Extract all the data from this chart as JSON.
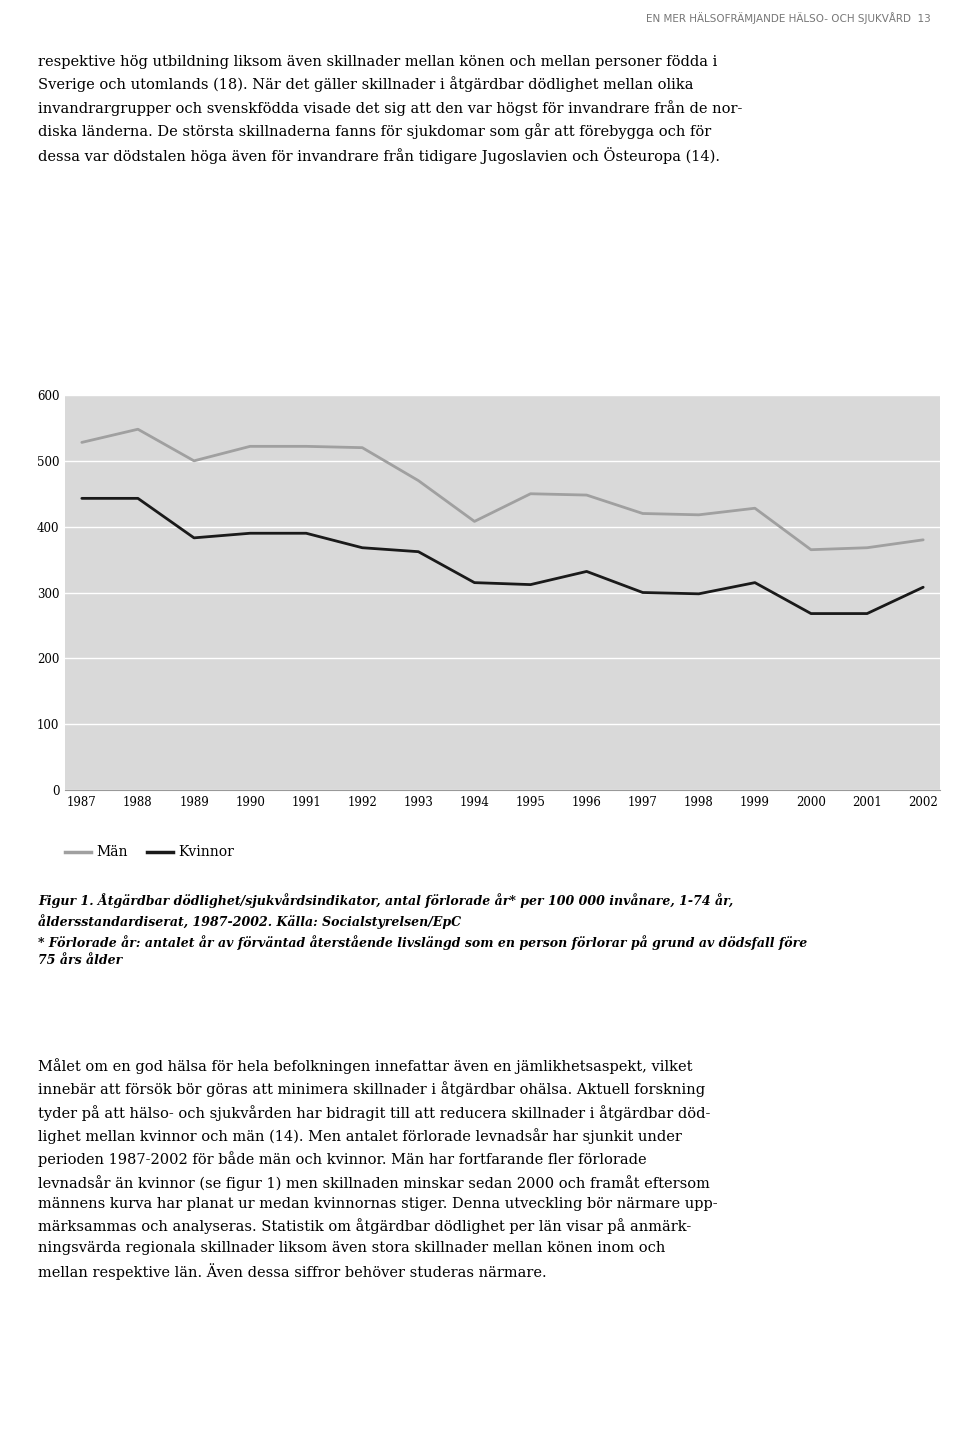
{
  "page_header": "EN MER HÄLSOFRÄMJANDE HÄLSO- OCH SJUKVÅRD  13",
  "years": [
    1987,
    1988,
    1989,
    1990,
    1991,
    1992,
    1993,
    1994,
    1995,
    1996,
    1997,
    1998,
    1999,
    2000,
    2001,
    2002
  ],
  "man_values": [
    528,
    548,
    500,
    522,
    522,
    520,
    470,
    408,
    450,
    448,
    420,
    418,
    428,
    365,
    368,
    380
  ],
  "kvinnor_values": [
    443,
    443,
    383,
    390,
    390,
    368,
    362,
    315,
    312,
    332,
    300,
    298,
    315,
    268,
    268,
    308
  ],
  "ylim": [
    0,
    600
  ],
  "yticks": [
    0,
    100,
    200,
    300,
    400,
    500,
    600
  ],
  "chart_bg": "#d9d9d9",
  "man_color": "#a0a0a0",
  "kvinnor_color": "#1a1a1a",
  "line_width": 2.0,
  "legend_man": "Män",
  "legend_kvinnor": "Kvinnor",
  "bg_color": "#ffffff",
  "text_color": "#1a1a1a",
  "header_color": "#777777",
  "para1_line1": "respektive hög utbildning liksom även skillnader mellan könen och mellan personer födda i",
  "para1_line2": "Sverige och utomlands (18). När det gäller skillnader i åtgärdbar dödlighet mellan olika",
  "para1_line3": "invandrargrupper och svenskfödda visade det sig att den var högst för invandrare från de nor-",
  "para1_line4": "diska länderna. De största skillnaderna fanns för sjukdomar som går att förebygga och för",
  "para1_line5": "dessa var dödstalen höga även för invandrare från tidigare Jugoslavien och Östeuropa (14).",
  "caption_line1": "Figur 1. Åtgärdbar dödlighet/sjukvårdsindikator, antal förlorade år* per 100 000 invånare, 1-74 år,",
  "caption_line2": "åldersstandardiserat, 1987-2002. Källa: Socialstyrelsen/EpC",
  "caption_line3": "* Förlorade år: antalet år av förväntad återstående livslängd som en person förlorar på grund av dödsfall före",
  "caption_line4": "75 års ålder",
  "para2_line1": "Målet om en god hälsa för hela befolkningen innefattar även en jämlikhetsaspekt, vilket",
  "para2_line2": "innebär att försök bör göras att minimera skillnader i åtgärdbar ohälsa. Aktuell forskning",
  "para2_line3": "tyder på att hälso- och sjukvården har bidragit till att reducera skillnader i åtgärdbar död-",
  "para2_line4": "lighet mellan kvinnor och män (14). Men antalet förlorade levnadsår har sjunkit under",
  "para2_line5": "perioden 1987-2002 för både män och kvinnor. Män har fortfarande fler förlorade",
  "para2_line6": "levnadsår än kvinnor (se figur 1) men skillnaden minskar sedan 2000 och framåt eftersom",
  "para2_line7": "männens kurva har planat ur medan kvinnornas stiger. Denna utveckling bör närmare upp-",
  "para2_line8": "märksammas och analyseras. Statistik om åtgärdbar dödlighet per län visar på anmärk-",
  "para2_line9": "ningsvärda regionala skillnader liksom även stora skillnader mellan könen inom och",
  "para2_line10": "mellan respektive län. Även dessa siffror behöver studeras närmare."
}
